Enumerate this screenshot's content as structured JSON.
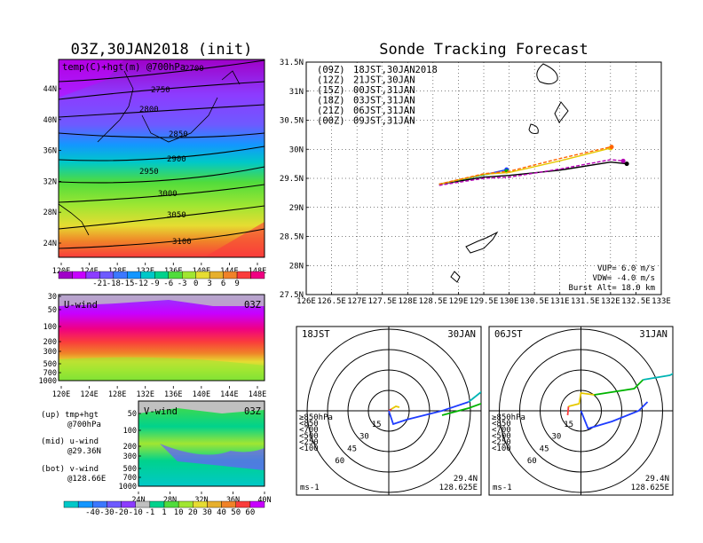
{
  "charts": [
    {
      "type": "heatmap",
      "panel": "upper-left",
      "title": "03Z,30JAN2018 (init)",
      "subtitle": "temp(C)+hgt(m) @700hPa",
      "x_ticks": [
        "120E",
        "124E",
        "128E",
        "132E",
        "136E",
        "140E",
        "144E",
        "148E"
      ],
      "y_ticks": [
        "24N",
        "28N",
        "32N",
        "36N",
        "40N",
        "44N"
      ],
      "contours": [
        {
          "label": "2700",
          "values": [
            2700
          ]
        },
        {
          "label": "2750"
        },
        {
          "label": "2800"
        },
        {
          "label": "2850"
        },
        {
          "label": "2900"
        },
        {
          "label": "2950"
        },
        {
          "label": "3000"
        },
        {
          "label": "3050"
        },
        {
          "label": "3100"
        }
      ],
      "colorbar": {
        "labels": [
          "-21",
          "-18",
          "-15",
          "-12",
          "-9",
          "-6",
          "-3",
          "0",
          "3",
          "6",
          "9"
        ],
        "colors": [
          "#a000c8",
          "#c800ff",
          "#8c3cff",
          "#6e5aff",
          "#3c78ff",
          "#1496ff",
          "#00c8c8",
          "#00d28c",
          "#50dc3c",
          "#a0e632",
          "#e6dc32",
          "#e6af2d",
          "#f08228",
          "#fa3c3c",
          "#f00082"
        ]
      }
    },
    {
      "type": "heatmap",
      "panel": "middle-left",
      "label": "U-wind",
      "time": "03Z",
      "x_ticks": [
        "120E",
        "124E",
        "128E",
        "132E",
        "136E",
        "140E",
        "144E",
        "148E"
      ],
      "y_ticks": [
        "30",
        "50",
        "100",
        "200",
        "300",
        "500",
        "700",
        "1000"
      ]
    },
    {
      "type": "heatmap",
      "panel": "lower-left",
      "label": "V-wind",
      "time": "03Z",
      "x_ticks": [
        "24N",
        "28N",
        "32N",
        "36N",
        "40N"
      ],
      "y_ticks": [
        "50",
        "100",
        "200",
        "300",
        "500",
        "700",
        "1000"
      ],
      "colorbar": {
        "labels": [
          "-40",
          "-30",
          "-20",
          "-10",
          "-1",
          "1",
          "10",
          "20",
          "30",
          "40",
          "50",
          "60"
        ],
        "colors": [
          "#00c8c8",
          "#1496ff",
          "#3c78ff",
          "#6e5aff",
          "#8c3cff",
          "#c0c0c0",
          "#00d28c",
          "#50dc3c",
          "#a0e632",
          "#e6dc32",
          "#e6af2d",
          "#f08228",
          "#fa3c3c",
          "#c800ff"
        ]
      }
    },
    {
      "type": "line",
      "panel": "tracking",
      "title": "Sonde Tracking Forecast",
      "x_ticks": [
        "126E",
        "126.5E",
        "127E",
        "127.5E",
        "128E",
        "128.5E",
        "129E",
        "129.5E",
        "130E",
        "130.5E",
        "131E",
        "131.5E",
        "132E",
        "132.5E",
        "133E"
      ],
      "y_ticks": [
        "27.5N",
        "28N",
        "28.5N",
        "29N",
        "29.5N",
        "30N",
        "30.5N",
        "31N",
        "31.5N"
      ],
      "xlim": [
        126,
        133
      ],
      "ylim": [
        27.5,
        31.5
      ],
      "legend": [
        {
          "run": "(09Z)",
          "valid": "18JST,30JAN2018",
          "color": "#000000"
        },
        {
          "run": "(12Z)",
          "valid": "21JST,30JAN",
          "color": "#b400b4"
        },
        {
          "run": "(15Z)",
          "valid": "00JST,31JAN",
          "color": "#1e3cff"
        },
        {
          "run": "(18Z)",
          "valid": "03JST,31JAN",
          "color": "#00b400"
        },
        {
          "run": "(21Z)",
          "valid": "06JST,31JAN",
          "color": "#e6c800"
        },
        {
          "run": "(00Z)",
          "valid": "09JST,31JAN",
          "color": "#ff6400"
        }
      ],
      "series": [
        {
          "color": "#000000",
          "points": [
            [
              128.62,
              29.4
            ],
            [
              129.5,
              29.52
            ],
            [
              130.0,
              29.55
            ],
            [
              131.0,
              29.64
            ],
            [
              132.0,
              29.78
            ],
            [
              132.32,
              29.75
            ]
          ]
        },
        {
          "color": "#b400b4",
          "points": [
            [
              128.62,
              29.38
            ],
            [
              129.5,
              29.5
            ],
            [
              130.0,
              29.52
            ],
            [
              131.0,
              29.66
            ],
            [
              132.0,
              29.82
            ],
            [
              132.25,
              29.8
            ]
          ]
        },
        {
          "color": "#1e3cff",
          "points": [
            [
              128.62,
              29.4
            ],
            [
              129.5,
              29.56
            ],
            [
              129.95,
              29.65
            ]
          ]
        },
        {
          "color": "#00b400",
          "points": [
            [
              128.62,
              29.4
            ],
            [
              129.5,
              29.56
            ],
            [
              129.95,
              29.62
            ]
          ]
        },
        {
          "color": "#e6c800",
          "points": [
            [
              128.62,
              29.4
            ],
            [
              129.5,
              29.57
            ],
            [
              130.0,
              29.6
            ],
            [
              131.0,
              29.8
            ],
            [
              132.0,
              30.02
            ],
            [
              132.0,
              30.02
            ]
          ]
        },
        {
          "color": "#ff6400",
          "points": [
            [
              128.62,
              29.4
            ],
            [
              129.5,
              29.58
            ],
            [
              130.0,
              29.62
            ],
            [
              131.0,
              29.84
            ],
            [
              132.0,
              30.04
            ],
            [
              132.02,
              30.04
            ]
          ]
        }
      ],
      "params": [
        "VUP= 6.0 m/s",
        "VDW= -4.0 m/s",
        "Burst Alt= 18.0 km"
      ]
    },
    {
      "type": "line",
      "panel": "hodograph-1",
      "time_label": "18JST",
      "date_label": "30JAN",
      "ring_labels": [
        "15",
        "30",
        "45",
        "60"
      ],
      "pressure_legend": [
        "≥850hPa",
        "<850",
        "<700",
        "<500",
        "<250",
        "<100"
      ],
      "location": [
        "29.4N",
        "128.625E"
      ],
      "unit": "ms-1"
    },
    {
      "type": "line",
      "panel": "hodograph-2",
      "time_label": "06JST",
      "date_label": "31JAN",
      "ring_labels": [
        "15",
        "30",
        "45",
        "60"
      ],
      "pressure_legend": [
        "≥850hPa",
        "<850",
        "<700",
        "<500",
        "<250",
        "<100"
      ],
      "location": [
        "29.4N",
        "128.625E"
      ],
      "unit": "ms-1"
    }
  ],
  "notes": {
    "up": "(up) tmp+hgt",
    "up2": "@700hPa",
    "mid": "(mid) u-wind",
    "mid2": "@29.36N",
    "bot": "(bot) v-wind",
    "bot2": "@128.66E"
  }
}
